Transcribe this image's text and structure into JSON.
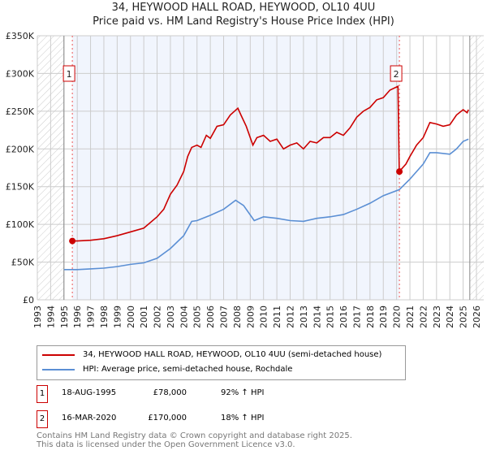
{
  "chart_data": {
    "type": "line",
    "title": "34, HEYWOOD HALL ROAD, HEYWOOD, OL10 4UU",
    "subtitle": "Price paid vs. HM Land Registry's House Price Index (HPI)",
    "xlim": [
      1993,
      2026
    ],
    "ylim": [
      0,
      350000
    ],
    "x_ticks": [
      "1993",
      "1994",
      "1995",
      "1996",
      "1997",
      "1998",
      "1999",
      "2000",
      "2001",
      "2002",
      "2003",
      "2004",
      "2005",
      "2006",
      "2007",
      "2008",
      "2009",
      "2010",
      "2011",
      "2012",
      "2013",
      "2014",
      "2015",
      "2016",
      "2017",
      "2018",
      "2019",
      "2020",
      "2021",
      "2022",
      "2023",
      "2024",
      "2025",
      "2026"
    ],
    "y_ticks": [
      {
        "v": 0,
        "label": "£0"
      },
      {
        "v": 50000,
        "label": "£50K"
      },
      {
        "v": 100000,
        "label": "£100K"
      },
      {
        "v": 150000,
        "label": "£150K"
      },
      {
        "v": 200000,
        "label": "£200K"
      },
      {
        "v": 250000,
        "label": "£250K"
      },
      {
        "v": 300000,
        "label": "£300K"
      },
      {
        "v": 350000,
        "label": "£350K"
      }
    ],
    "grid": true,
    "series": [
      {
        "name": "34, HEYWOOD HALL ROAD, HEYWOOD, OL10 4UU (semi-detached house)",
        "color": "#cc0000",
        "points": [
          [
            1995.63,
            78
          ],
          [
            1996,
            78
          ],
          [
            1997,
            79
          ],
          [
            1998,
            81
          ],
          [
            1999,
            85
          ],
          [
            2000,
            90
          ],
          [
            2001,
            95
          ],
          [
            2002,
            110
          ],
          [
            2002.5,
            120
          ],
          [
            2003,
            140
          ],
          [
            2003.5,
            152
          ],
          [
            2004,
            170
          ],
          [
            2004.3,
            190
          ],
          [
            2004.6,
            202
          ],
          [
            2005,
            205
          ],
          [
            2005.3,
            202
          ],
          [
            2005.7,
            218
          ],
          [
            2006,
            214
          ],
          [
            2006.5,
            230
          ],
          [
            2007,
            232
          ],
          [
            2007.5,
            245
          ],
          [
            2008.07,
            254
          ],
          [
            2008.3,
            245
          ],
          [
            2008.7,
            230
          ],
          [
            2009.2,
            205
          ],
          [
            2009.5,
            215
          ],
          [
            2010,
            218
          ],
          [
            2010.5,
            210
          ],
          [
            2011,
            213
          ],
          [
            2011.5,
            200
          ],
          [
            2012,
            205
          ],
          [
            2012.5,
            208
          ],
          [
            2013,
            200
          ],
          [
            2013.5,
            210
          ],
          [
            2014,
            208
          ],
          [
            2014.5,
            215
          ],
          [
            2015,
            215
          ],
          [
            2015.5,
            222
          ],
          [
            2016,
            218
          ],
          [
            2016.5,
            228
          ],
          [
            2017,
            242
          ],
          [
            2017.5,
            250
          ],
          [
            2018,
            255
          ],
          [
            2018.5,
            265
          ],
          [
            2019,
            268
          ],
          [
            2019.5,
            278
          ],
          [
            2020.1,
            283
          ],
          [
            2020.2,
            170
          ],
          [
            2020.7,
            180
          ],
          [
            2021,
            190
          ],
          [
            2021.5,
            205
          ],
          [
            2022,
            215
          ],
          [
            2022.5,
            235
          ],
          [
            2023,
            233
          ],
          [
            2023.5,
            230
          ],
          [
            2024,
            232
          ],
          [
            2024.5,
            245
          ],
          [
            2025,
            252
          ],
          [
            2025.3,
            248
          ],
          [
            2025.4,
            252
          ]
        ]
      },
      {
        "name": "HPI: Average price, semi-detached house, Rochdale",
        "color": "#5b8fd4",
        "points": [
          [
            1995,
            40
          ],
          [
            1996,
            40
          ],
          [
            1997,
            41
          ],
          [
            1998,
            42
          ],
          [
            1999,
            44
          ],
          [
            2000,
            47
          ],
          [
            2001,
            49
          ],
          [
            2002,
            55
          ],
          [
            2003,
            68
          ],
          [
            2004,
            85
          ],
          [
            2004.6,
            104
          ],
          [
            2005,
            105
          ],
          [
            2006,
            112
          ],
          [
            2007,
            120
          ],
          [
            2007.9,
            132
          ],
          [
            2008.5,
            125
          ],
          [
            2009.3,
            105
          ],
          [
            2010,
            110
          ],
          [
            2011,
            108
          ],
          [
            2012,
            105
          ],
          [
            2013,
            104
          ],
          [
            2014,
            108
          ],
          [
            2015,
            110
          ],
          [
            2016,
            113
          ],
          [
            2017,
            120
          ],
          [
            2018,
            128
          ],
          [
            2019,
            138
          ],
          [
            2020.2,
            146
          ],
          [
            2021,
            160
          ],
          [
            2022,
            180
          ],
          [
            2022.5,
            195
          ],
          [
            2023,
            195
          ],
          [
            2024,
            193
          ],
          [
            2024.5,
            200
          ],
          [
            2025,
            210
          ],
          [
            2025.4,
            213
          ]
        ]
      }
    ],
    "sales": [
      {
        "id": "1",
        "x": 1995.63,
        "value": 78000
      },
      {
        "id": "2",
        "x": 2020.21,
        "value": 170000
      }
    ],
    "legend_position": "below"
  },
  "legend": {
    "items": [
      "34, HEYWOOD HALL ROAD, HEYWOOD, OL10 4UU (semi-detached house)",
      "HPI: Average price, semi-detached house, Rochdale"
    ]
  },
  "table": [
    {
      "num": "1",
      "date": "18-AUG-1995",
      "price": "£78,000",
      "hpi": "92% ↑ HPI"
    },
    {
      "num": "2",
      "date": "16-MAR-2020",
      "price": "£170,000",
      "hpi": "18% ↑ HPI"
    }
  ],
  "footer": [
    "Contains HM Land Registry data © Crown copyright and database right 2025.",
    "This data is licensed under the Open Government Licence v3.0."
  ]
}
